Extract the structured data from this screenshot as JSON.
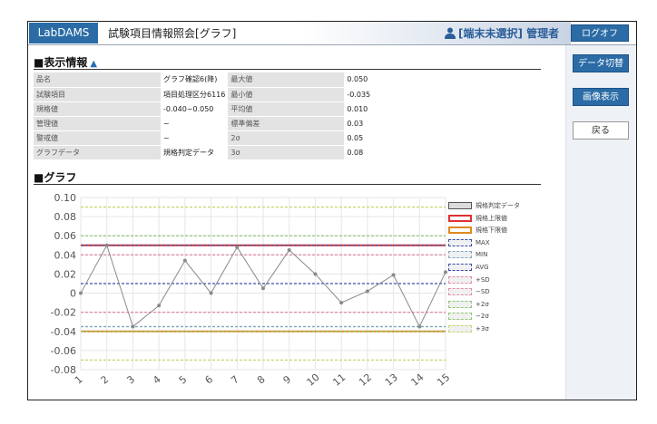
{
  "header": {
    "app_name": "LabDAMS",
    "page_title": "試験項目情報照会[グラフ]",
    "user_text": "[端末未選択] 管理者",
    "logoff_label": "ログオフ"
  },
  "sidebar": {
    "data_switch_label": "データ切替",
    "image_label": "画像表示",
    "back_label": "戻る"
  },
  "info_section": {
    "title": "■表示情報",
    "rows": [
      {
        "label1": "品名",
        "value1": "グラフ確認6(降)",
        "label2": "最大値",
        "value2": "0.050"
      },
      {
        "label1": "試験項目",
        "value1": "項目処理区分6116",
        "label2": "最小値",
        "value2": "-0.035"
      },
      {
        "label1": "規格値",
        "value1": "-0.040~0.050",
        "label2": "平均値",
        "value2": "0.010"
      },
      {
        "label1": "管理値",
        "value1": "~",
        "label2": "標準偏差",
        "value2": "0.03"
      },
      {
        "label1": "警戒値",
        "value1": "~",
        "label2": "2σ",
        "value2": "0.05"
      },
      {
        "label1": "グラフデータ",
        "value1": "規格判定データ",
        "label2": "3σ",
        "value2": "0.08"
      }
    ]
  },
  "graph_section": {
    "title": "■グラフ"
  },
  "chart_data": {
    "type": "line",
    "x": [
      "1",
      "2",
      "3",
      "4",
      "5",
      "6",
      "7",
      "8",
      "9",
      "10",
      "11",
      "12",
      "13",
      "14",
      "15"
    ],
    "ylim": [
      -0.08,
      0.1
    ],
    "yticks": [
      "0.10",
      "0.08",
      "0.06",
      "0.04",
      "0.02",
      "0",
      "-0.02",
      "-0.04",
      "-0.06",
      "-0.08"
    ],
    "grid": true,
    "legend_position": "right",
    "series": [
      {
        "name": "規格判定データ",
        "values": [
          0.0,
          0.05,
          -0.035,
          -0.013,
          0.034,
          0.0,
          0.048,
          0.005,
          0.045,
          0.02,
          -0.01,
          0.002,
          0.019,
          -0.035,
          0.022
        ],
        "color": "#8a8a8a",
        "style": "solid"
      }
    ],
    "reference_lines": [
      {
        "name": "規格上限値",
        "value": 0.05,
        "color": "#e03030",
        "style": "solid"
      },
      {
        "name": "規格下限値",
        "value": -0.04,
        "color": "#e08a20",
        "style": "solid"
      },
      {
        "name": "MAX",
        "value": 0.05,
        "color": "#3a4fa8",
        "style": "dashed"
      },
      {
        "name": "MIN",
        "value": -0.035,
        "color": "#7fa8c8",
        "style": "dashed"
      },
      {
        "name": "AVG",
        "value": 0.01,
        "color": "#3a4fa8",
        "style": "dashed"
      },
      {
        "name": "+SD",
        "value": 0.04,
        "color": "#e090a8",
        "style": "dashed"
      },
      {
        "name": "−SD",
        "value": -0.02,
        "color": "#e090a8",
        "style": "dashed"
      },
      {
        "name": "+2σ",
        "value": 0.06,
        "color": "#90c878",
        "style": "dashed"
      },
      {
        "name": "−2σ",
        "value": -0.04,
        "color": "#90c878",
        "style": "dashed"
      },
      {
        "name": "+3σ",
        "value": 0.09,
        "color": "#c8d870",
        "style": "dashed"
      }
    ],
    "extra_lines": [
      {
        "value": -0.07,
        "color": "#c8d870",
        "style": "dashed"
      },
      {
        "value": -0.035,
        "color": "#90c878",
        "style": "dashed"
      }
    ]
  }
}
